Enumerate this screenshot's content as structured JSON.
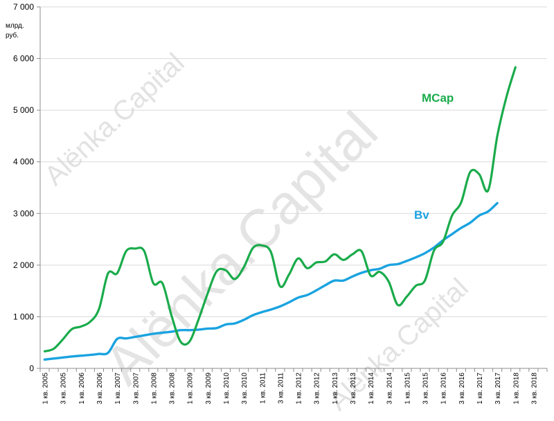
{
  "chart_data": {
    "type": "line",
    "unit_label": [
      "млрд.",
      "руб."
    ],
    "ylim": [
      0,
      7000
    ],
    "y_ticks": [
      0,
      1000,
      2000,
      3000,
      4000,
      5000,
      6000,
      7000
    ],
    "y_tick_labels": [
      "0",
      "1 000",
      "2 000",
      "3 000",
      "4 000",
      "5 000",
      "6 000",
      "7 000"
    ],
    "x_categories": [
      "1 кв. 2005",
      "2 кв. 2005",
      "3 кв. 2005",
      "4 кв. 2005",
      "1 кв. 2006",
      "2 кв. 2006",
      "3 кв. 2006",
      "4 кв. 2006",
      "1 кв. 2007",
      "2 кв. 2007",
      "3 кв. 2007",
      "4 кв. 2007",
      "1 кв. 2008",
      "2 кв. 2008",
      "3 кв. 2008",
      "4 кв. 2008",
      "1 кв. 2009",
      "2 кв. 2009",
      "3 кв. 2009",
      "4 кв. 2009",
      "1 кв. 2010",
      "2 кв. 2010",
      "3 кв. 2010",
      "4 кв. 2010",
      "1 кв. 2011",
      "2 кв. 2011",
      "3 кв. 2011",
      "4 кв. 2011",
      "1 кв. 2012",
      "2 кв. 2012",
      "3 кв. 2012",
      "4 кв. 2012",
      "1 кв. 2013",
      "2 кв. 2013",
      "3 кв. 2013",
      "4 кв. 2013",
      "1 кв. 2014",
      "2 кв. 2014",
      "3 кв. 2014",
      "4 кв. 2014",
      "1 кв. 2015",
      "2 кв. 2015",
      "3 кв. 2015",
      "4 кв. 2015",
      "1 кв. 2016",
      "2 кв. 2016",
      "3 кв. 2016",
      "4 кв. 2016",
      "1 кв. 2017",
      "2 кв. 2017",
      "3 кв. 2017",
      "4 кв. 2017",
      "1 кв. 2018",
      "2 кв. 2018",
      "3 кв. 2018",
      "4 кв. 2018"
    ],
    "x_tick_labels": [
      "1 кв. 2005",
      "3 кв. 2005",
      "1 кв. 2006",
      "3 кв. 2006",
      "1 кв. 2007",
      "3 кв. 2007",
      "1 кв. 2008",
      "3 кв. 2008",
      "1 кв. 2009",
      "3 кв. 2009",
      "1 кв. 2010",
      "3 кв. 2010",
      "1 кв. 2011",
      "3 кв. 2011",
      "1 кв. 2012",
      "3 кв. 2012",
      "1 кв. 2013",
      "3 кв. 2013",
      "1 кв. 2014",
      "3 кв. 2014",
      "1 кв. 2015",
      "3 кв. 2015",
      "1 кв. 2016",
      "3 кв. 2016",
      "1 кв. 2017",
      "3 кв. 2017",
      "1 кв. 2018",
      "3 кв. 2018"
    ],
    "series": [
      {
        "name": "MCap",
        "color": "#1aab4b",
        "values": [
          330,
          380,
          560,
          760,
          810,
          900,
          1150,
          1840,
          1840,
          2270,
          2320,
          2270,
          1650,
          1650,
          1030,
          520,
          520,
          950,
          1450,
          1880,
          1900,
          1730,
          1960,
          2330,
          2380,
          2250,
          1590,
          1820,
          2130,
          1940,
          2050,
          2070,
          2210,
          2100,
          2210,
          2270,
          1800,
          1870,
          1680,
          1230,
          1390,
          1600,
          1700,
          2280,
          2450,
          2960,
          3210,
          3800,
          3760,
          3450,
          4500,
          5250,
          5830
        ]
      },
      {
        "name": "Bv",
        "color": "#1aa3e0",
        "values": [
          170,
          190,
          210,
          230,
          245,
          260,
          280,
          300,
          570,
          580,
          610,
          640,
          670,
          690,
          710,
          740,
          740,
          750,
          770,
          780,
          850,
          870,
          940,
          1030,
          1090,
          1140,
          1200,
          1280,
          1370,
          1420,
          1510,
          1610,
          1700,
          1700,
          1780,
          1850,
          1900,
          1930,
          2000,
          2020,
          2080,
          2150,
          2230,
          2340,
          2480,
          2600,
          2720,
          2820,
          2960,
          3040,
          3200
        ]
      }
    ]
  },
  "watermark_text": "Alënka.Capital"
}
